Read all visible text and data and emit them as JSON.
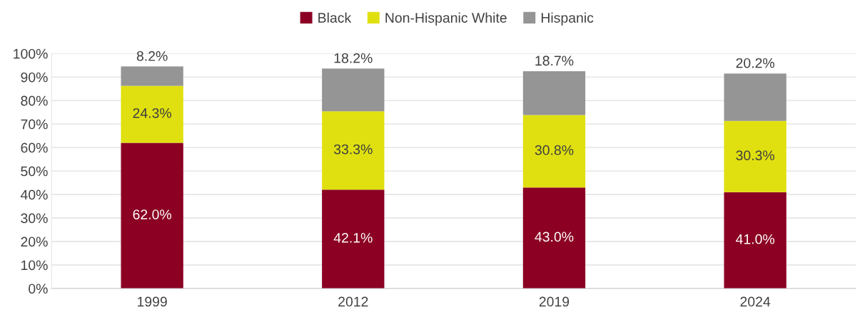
{
  "chart_data": {
    "type": "bar",
    "stacked": true,
    "categories": [
      "1999",
      "2012",
      "2019",
      "2024"
    ],
    "series": [
      {
        "name": "Black",
        "color": "#8b0023",
        "values": [
          62.0,
          42.1,
          43.0,
          41.0
        ],
        "value_labels": [
          "62.0%",
          "42.1%",
          "43.0%",
          "41.0%"
        ]
      },
      {
        "name": "Non-Hispanic White",
        "color": "#e0e010",
        "values": [
          24.3,
          33.3,
          30.8,
          30.3
        ],
        "value_labels": [
          "24.3%",
          "33.3%",
          "30.8%",
          "30.3%"
        ]
      },
      {
        "name": "Hispanic",
        "color": "#959595",
        "values": [
          8.2,
          18.2,
          18.7,
          20.2
        ],
        "value_labels": [
          "8.2%",
          "18.2%",
          "18.7%",
          "20.2%"
        ]
      }
    ],
    "ylim": [
      0,
      100
    ],
    "yticks": [
      {
        "value": 0,
        "label": "0%"
      },
      {
        "value": 10,
        "label": "10%"
      },
      {
        "value": 20,
        "label": "20%"
      },
      {
        "value": 30,
        "label": "30%"
      },
      {
        "value": 40,
        "label": "40%"
      },
      {
        "value": 50,
        "label": "50%"
      },
      {
        "value": 60,
        "label": "60%"
      },
      {
        "value": 70,
        "label": "70%"
      },
      {
        "value": 80,
        "label": "80%"
      },
      {
        "value": 90,
        "label": "90%"
      },
      {
        "value": 100,
        "label": "100%"
      }
    ],
    "grid": "y",
    "legend": "top"
  }
}
